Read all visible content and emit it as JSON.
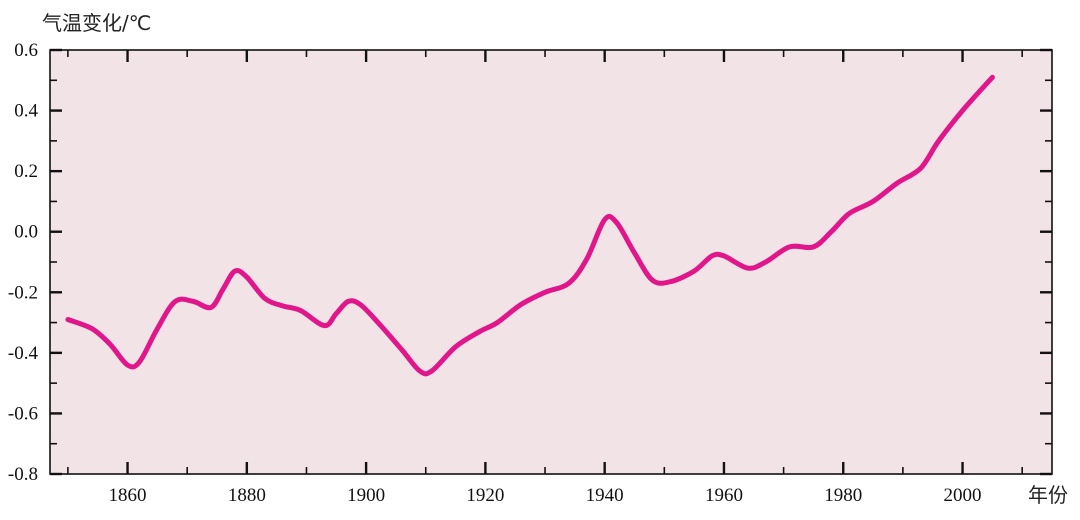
{
  "chart_data": {
    "type": "line",
    "title": "",
    "ylabel": "气温变化/℃",
    "xlabel": "年份",
    "xlim": [
      1847,
      2015
    ],
    "ylim": [
      -0.8,
      0.6
    ],
    "x_ticks": [
      1860,
      1880,
      1900,
      1920,
      1940,
      1960,
      1980,
      2000
    ],
    "x_tick_labels": [
      "1860",
      "1880",
      "1900",
      "1920",
      "1940",
      "1960",
      "1980",
      "2000"
    ],
    "y_ticks": [
      -0.8,
      -0.6,
      -0.4,
      -0.2,
      0.0,
      0.2,
      0.4,
      0.6
    ],
    "y_tick_labels": [
      "-0.8",
      "-0.6",
      "-0.4",
      "-0.2",
      "0.0",
      "0.2",
      "0.4",
      "0.6"
    ],
    "grid": false,
    "colors": {
      "plot_bg": "#f2e3e7",
      "line": "#e0168a",
      "axis": "#111111"
    },
    "series": [
      {
        "x": [
          1850,
          1854,
          1857,
          1860,
          1862,
          1865,
          1868,
          1871,
          1874,
          1876,
          1878,
          1880,
          1883,
          1886,
          1889,
          1893,
          1895,
          1897,
          1899,
          1902,
          1906,
          1909,
          1911,
          1915,
          1919,
          1922,
          1926,
          1930,
          1934,
          1937,
          1940,
          1942,
          1945,
          1948,
          1951,
          1955,
          1958,
          1960,
          1964,
          1967,
          1971,
          1975,
          1978,
          1981,
          1985,
          1989,
          1993,
          1996,
          2000,
          2005
        ],
        "y": [
          -0.29,
          -0.32,
          -0.37,
          -0.44,
          -0.43,
          -0.32,
          -0.23,
          -0.23,
          -0.25,
          -0.19,
          -0.13,
          -0.15,
          -0.22,
          -0.245,
          -0.26,
          -0.31,
          -0.27,
          -0.23,
          -0.24,
          -0.3,
          -0.39,
          -0.46,
          -0.46,
          -0.38,
          -0.33,
          -0.3,
          -0.24,
          -0.2,
          -0.17,
          -0.09,
          0.04,
          0.03,
          -0.07,
          -0.16,
          -0.165,
          -0.13,
          -0.08,
          -0.08,
          -0.12,
          -0.1,
          -0.05,
          -0.05,
          0.0,
          0.06,
          0.1,
          0.16,
          0.21,
          0.3,
          0.4,
          0.51
        ]
      }
    ]
  }
}
